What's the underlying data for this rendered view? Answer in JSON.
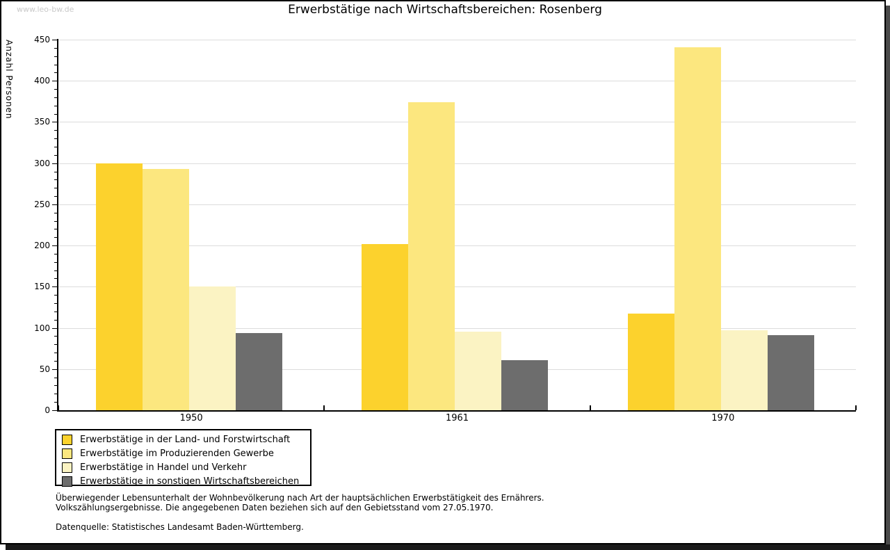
{
  "watermark": "www.leo-bw.de",
  "chart_data": {
    "type": "bar",
    "title": "Erwerbstätige nach Wirtschaftsbereichen: Rosenberg",
    "xlabel": "",
    "ylabel": "Anzahl Personen",
    "ylim": [
      0,
      450
    ],
    "ytick_step": 50,
    "yminor_step": 10,
    "grid": true,
    "legend_position": "bottom-left",
    "categories": [
      "1950",
      "1961",
      "1970"
    ],
    "series": [
      {
        "name": "Erwerbstätige in der Land- und Forstwirtschaft",
        "color": "#FCD22D",
        "values": [
          300,
          202,
          117
        ]
      },
      {
        "name": "Erwerbstätige im Produzierenden Gewerbe",
        "color": "#FCE77F",
        "values": [
          293,
          374,
          441
        ]
      },
      {
        "name": "Erwerbstätige in Handel und Verkehr",
        "color": "#FBF3C3",
        "values": [
          150,
          95,
          97
        ]
      },
      {
        "name": "Erwerbstätige in sonstigen Wirtschaftsbereichen",
        "color": "#6D6D6D",
        "values": [
          94,
          61,
          91
        ]
      }
    ]
  },
  "footnotes": {
    "line1": "Überwiegender Lebensunterhalt der Wohnbevölkerung nach Art der hauptsächlichen Erwerbstätigkeit des Ernährers.",
    "line2": "Volkszählungsergebnisse. Die angegebenen Daten beziehen sich auf den Gebietsstand vom 27.05.1970.",
    "source": "Datenquelle: Statistisches Landesamt Baden-Württemberg."
  },
  "colors": {
    "gridline": "#dcdcdc",
    "axis": "#000000",
    "watermark": "#c9c9c9",
    "background": "#ffffff",
    "frame_shadow": "#4a4a4a"
  }
}
